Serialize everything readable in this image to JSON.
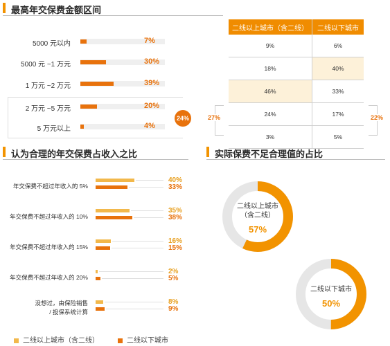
{
  "sections": {
    "max_premium": "最高年交保费金额区间",
    "reasonable_ratio": "认为合理的年交保费占收入之比",
    "actual_insufficient": "实际保费不足合理值的占比"
  },
  "colors": {
    "accent": "#f29300",
    "orange": "#e8720c",
    "yellow": "#f2b84b",
    "gray": "#e6e6e6",
    "highlight": "#fdf1d9"
  },
  "chart_data": [
    {
      "type": "bar",
      "categories": [
        "5000 元以内",
        "5000 元 ~1 万元",
        "1 万元 ~2 万元",
        "2 万元 ~5 万元",
        "5 万元以上"
      ],
      "values": [
        7,
        30,
        39,
        20,
        4
      ],
      "value_labels": [
        "7%",
        "30%",
        "39%",
        "20%",
        "4%"
      ],
      "xlim": [
        0,
        100
      ],
      "bracket_label": "24%"
    },
    {
      "type": "table",
      "headers": [
        "二线以上城市（含二线）",
        "二线以下城市"
      ],
      "rows": [
        [
          "9%",
          "6%"
        ],
        [
          "18%",
          "40%"
        ],
        [
          "46%",
          "33%"
        ],
        [
          "24%",
          "17%"
        ],
        [
          "3%",
          "5%"
        ]
      ],
      "highlight": [
        [
          2,
          0
        ],
        [
          1,
          1
        ]
      ],
      "side_labels": [
        "27%",
        "22%"
      ]
    },
    {
      "type": "bar",
      "categories": [
        "年交保费不超过年收入的 5%",
        "年交保费不超过年收入的 10%",
        "年交保费不超过年收入的 15%",
        "年交保费不超过年收入的 20%",
        "没想过，由保险销售\n/ 投保系统计算"
      ],
      "series": [
        {
          "name": "二线以上城市（含二线）",
          "values": [
            40,
            35,
            16,
            2,
            8
          ],
          "labels": [
            "40%",
            "35%",
            "16%",
            "2%",
            "8%"
          ]
        },
        {
          "name": "二线以下城市",
          "values": [
            33,
            38,
            15,
            5,
            9
          ],
          "labels": [
            "33%",
            "38%",
            "15%",
            "5%",
            "9%"
          ]
        }
      ],
      "xlim": [
        0,
        100
      ],
      "legend": "bottom"
    },
    {
      "type": "pie",
      "charts": [
        {
          "label_line1": "二线以上城市",
          "label_line2": "（含二线）",
          "value": 57,
          "value_label": "57%"
        },
        {
          "label_line1": "二线以下城市",
          "label_line2": "",
          "value": 50,
          "value_label": "50%"
        }
      ]
    }
  ]
}
